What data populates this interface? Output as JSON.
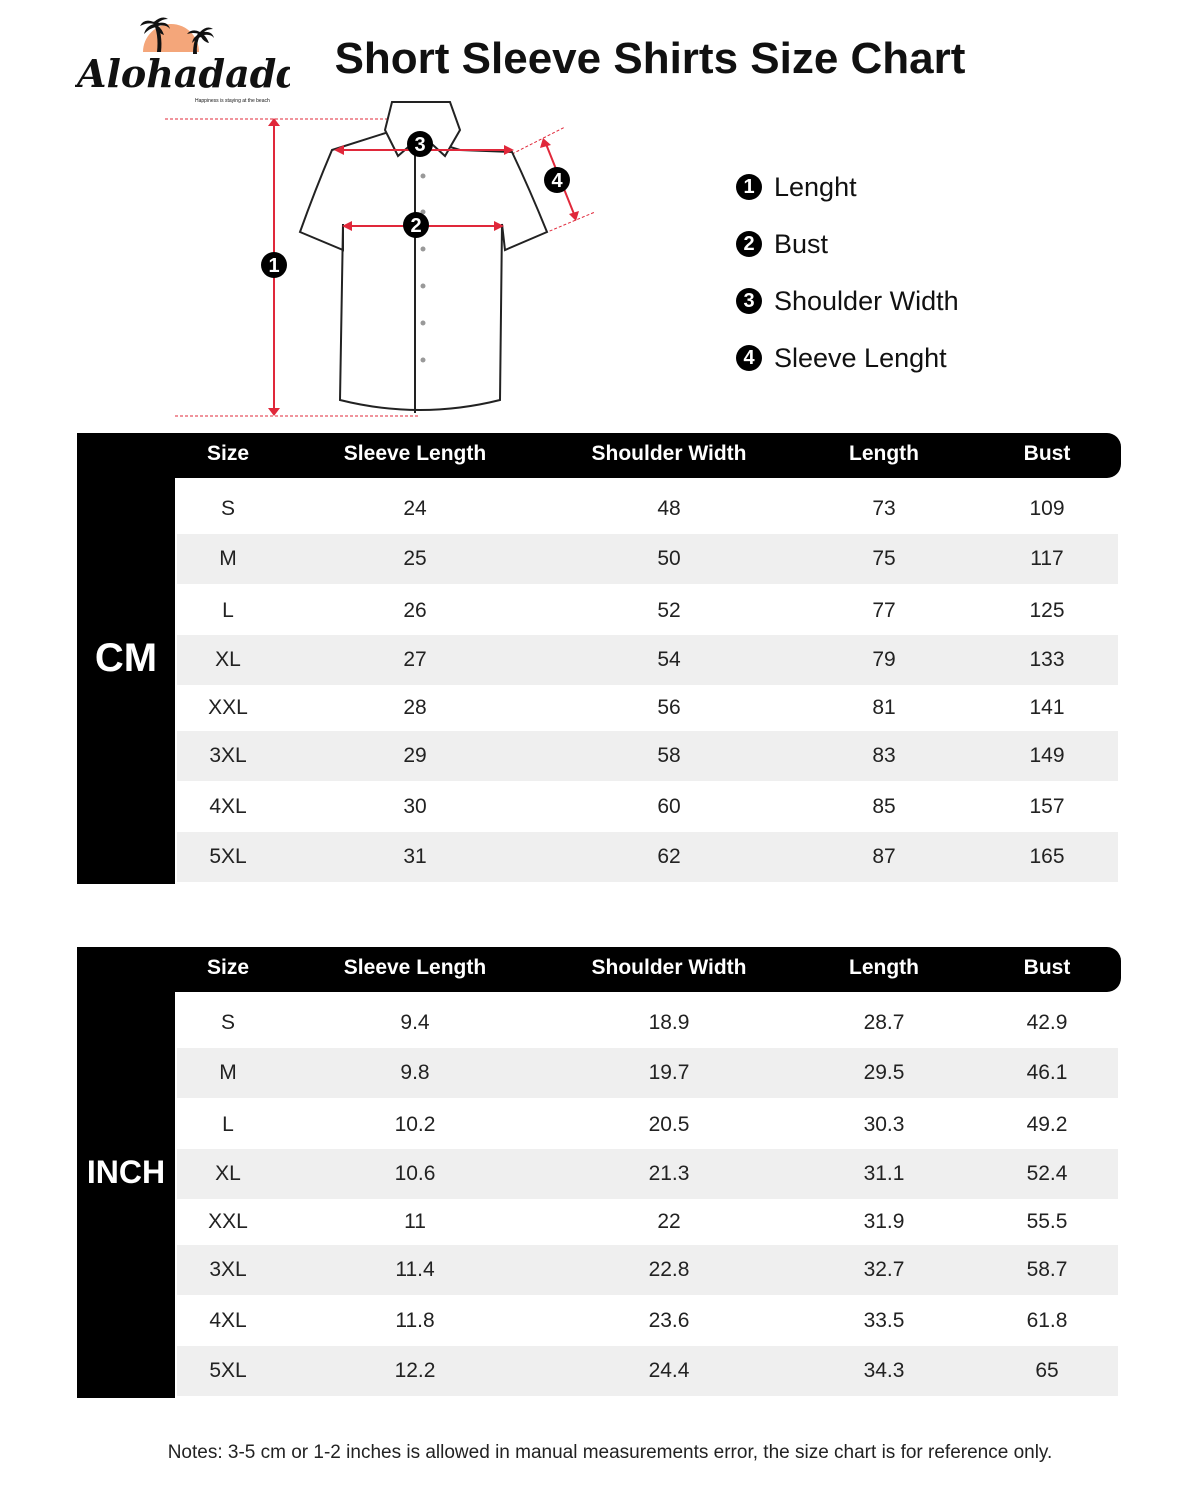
{
  "title": "Short Sleeve Shirts Size Chart",
  "logo": {
    "brand": "Alohadaddy",
    "tagline": "Happiness is staying at the beach"
  },
  "legend": [
    {
      "num": "1",
      "label": "Lenght"
    },
    {
      "num": "2",
      "label": "Bust"
    },
    {
      "num": "3",
      "label": "Shoulder Width"
    },
    {
      "num": "4",
      "label": "Sleeve Lenght"
    }
  ],
  "columns": [
    "Size",
    "Sleeve Length",
    "Shoulder Width",
    "Length",
    "Bust"
  ],
  "tables": [
    {
      "unit": "CM",
      "rows": [
        [
          "S",
          "24",
          "48",
          "73",
          "109"
        ],
        [
          "M",
          "25",
          "50",
          "75",
          "117"
        ],
        [
          "L",
          "26",
          "52",
          "77",
          "125"
        ],
        [
          "XL",
          "27",
          "54",
          "79",
          "133"
        ],
        [
          "XXL",
          "28",
          "56",
          "81",
          "141"
        ],
        [
          "3XL",
          "29",
          "58",
          "83",
          "149"
        ],
        [
          "4XL",
          "30",
          "60",
          "85",
          "157"
        ],
        [
          "5XL",
          "31",
          "62",
          "87",
          "165"
        ]
      ]
    },
    {
      "unit": "INCH",
      "rows": [
        [
          "S",
          "9.4",
          "18.9",
          "28.7",
          "42.9"
        ],
        [
          "M",
          "9.8",
          "19.7",
          "29.5",
          "46.1"
        ],
        [
          "L",
          "10.2",
          "20.5",
          "30.3",
          "49.2"
        ],
        [
          "XL",
          "10.6",
          "21.3",
          "31.1",
          "52.4"
        ],
        [
          "XXL",
          "11",
          "22",
          "31.9",
          "55.5"
        ],
        [
          "3XL",
          "11.4",
          "22.8",
          "32.7",
          "58.7"
        ],
        [
          "4XL",
          "11.8",
          "23.6",
          "33.5",
          "61.8"
        ],
        [
          "5XL",
          "12.2",
          "24.4",
          "34.3",
          "65"
        ]
      ]
    }
  ],
  "notes": "Notes: 3-5 cm or 1-2 inches is allowed in manual measurements error, the size chart is for reference only.",
  "colors": {
    "accent_red": "#e0283a",
    "logo_sun": "#f4a67a",
    "header_bg": "#000000",
    "stripe": "#efefef"
  }
}
